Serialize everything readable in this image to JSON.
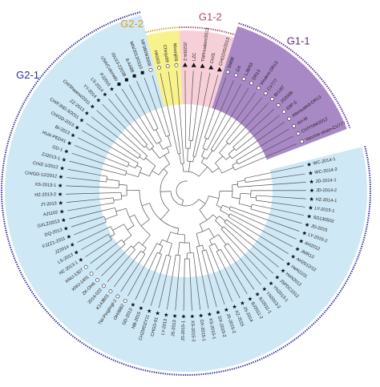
{
  "groups": [
    {
      "id": "g2-1",
      "label": "G2-1",
      "color": "#2b2b9e",
      "fill": "#cfe8f5",
      "label_angle": 216
    },
    {
      "id": "g2-2",
      "label": "G2-2",
      "color": "#d7a21c",
      "fill": "#f7f28a",
      "label_angle": -108
    },
    {
      "id": "g1-2",
      "label": "G1-2",
      "color": "#b04a60",
      "fill": "#f7cfd8",
      "label_angle": -82
    },
    {
      "id": "g1-1",
      "label": "G1-1",
      "color": "#5c2a8a",
      "fill": "#a988c6",
      "label_angle": -53
    }
  ],
  "taxa": [
    {
      "label": "WC-2014-1",
      "marker": "star",
      "group": "g2-1"
    },
    {
      "label": "WC-2014-2",
      "marker": "star",
      "group": "g2-1"
    },
    {
      "label": "JD-2014-1",
      "marker": "star",
      "group": "g2-1"
    },
    {
      "label": "JD-2014-2",
      "marker": "star",
      "group": "g2-1"
    },
    {
      "label": "HZ-2014-1",
      "marker": "star",
      "group": "g2-1"
    },
    {
      "label": "LY-2015-1",
      "marker": "star",
      "group": "g2-1"
    },
    {
      "label": "SD130502",
      "marker": "star",
      "group": "g2-1"
    },
    {
      "label": "JD-2015",
      "marker": "star",
      "group": "g2-1"
    },
    {
      "label": "LY-2015-2",
      "marker": "star",
      "group": "g2-1"
    },
    {
      "label": "AH2012",
      "marker": "star",
      "group": "g2-1"
    },
    {
      "label": "JMR13",
      "marker": "star",
      "group": "g2-1"
    },
    {
      "label": "AH2012/12",
      "marker": "star",
      "group": "g2-1"
    },
    {
      "label": "HeN1101",
      "marker": "star",
      "group": "g2-1"
    },
    {
      "label": "HeN2012",
      "marker": "star",
      "group": "g2-1"
    },
    {
      "label": "JSPDC1012",
      "marker": "star",
      "group": "g2-1"
    },
    {
      "label": "YN2013-1",
      "marker": "star",
      "group": "g2-1"
    },
    {
      "label": "YN2013-2",
      "marker": "star",
      "group": "g2-1"
    },
    {
      "label": "BJ2011-1",
      "marker": "star",
      "group": "g2-1"
    },
    {
      "label": "BJ2011-2",
      "marker": "star",
      "group": "g2-1"
    },
    {
      "label": "JS-2014",
      "marker": "star",
      "group": "g2-1"
    },
    {
      "label": "XZ-2015",
      "marker": "star",
      "group": "g2-1"
    },
    {
      "label": "JS-2015-2",
      "marker": "star",
      "group": "g2-1"
    },
    {
      "label": "DX-2015-2",
      "marker": "star",
      "group": "g2-1"
    },
    {
      "label": "XS-2015-1",
      "marker": "star",
      "group": "g2-1"
    },
    {
      "label": "DX-2015-1",
      "marker": "star",
      "group": "g2-1"
    },
    {
      "label": "XS-2015-2",
      "marker": "star",
      "group": "g2-1"
    },
    {
      "label": "JS-2015-1",
      "marker": "star",
      "group": "g2-1"
    },
    {
      "label": "JS-2013",
      "marker": "star",
      "group": "g2-1"
    },
    {
      "label": "LY-2013",
      "marker": "star",
      "group": "g2-1"
    },
    {
      "label": "CHGD-01",
      "marker": "star",
      "group": "g2-1"
    },
    {
      "label": "CHZMDZY11",
      "marker": "star",
      "group": "g2-1"
    },
    {
      "label": "NB-2015",
      "marker": "star",
      "group": "g2-1"
    },
    {
      "label": "GD-2013",
      "marker": "star",
      "group": "g2-1"
    },
    {
      "label": "OH/iBB2",
      "marker": "circle",
      "group": "g2-1"
    },
    {
      "label": "TW-PinglingI-2",
      "marker": "circle",
      "group": "g2-1"
    },
    {
      "label": "K14JB01",
      "marker": "circle",
      "group": "g2-1"
    },
    {
      "label": "2014-022",
      "marker": "circle",
      "group": "g2-1"
    },
    {
      "label": "ZK-OH6",
      "marker": "circle",
      "group": "g2-1"
    },
    {
      "label": "KNU-1401",
      "marker": "circle",
      "group": "g2-1"
    },
    {
      "label": "KNU-1307",
      "marker": "circle",
      "group": "g2-1"
    },
    {
      "label": "HZ-2013-1",
      "marker": "star",
      "group": "g2-1"
    },
    {
      "label": "LS-2013",
      "marker": "star",
      "group": "g2-1"
    },
    {
      "label": "JZ2014",
      "marker": "star",
      "group": "g2-1"
    },
    {
      "label": "FJZZ1-2011",
      "marker": "star",
      "group": "g2-1"
    },
    {
      "label": "DQ-2013",
      "marker": "star",
      "group": "g2-1"
    },
    {
      "label": "GXLZ/2013",
      "marker": "star",
      "group": "g2-1"
    },
    {
      "label": "AJ1102",
      "marker": "star",
      "group": "g2-1"
    },
    {
      "label": "JT-2013",
      "marker": "star",
      "group": "g2-1"
    },
    {
      "label": "HZ-2013-2",
      "marker": "star",
      "group": "g2-1"
    },
    {
      "label": "XS-2013-1",
      "marker": "star",
      "group": "g2-1"
    },
    {
      "label": "CH/GD-12/2012",
      "marker": "star",
      "group": "g2-1"
    },
    {
      "label": "CH/Z-1/2012",
      "marker": "star",
      "group": "g2-1"
    },
    {
      "label": "ZJ2013-1",
      "marker": "star",
      "group": "g2-1"
    },
    {
      "label": "GD-1",
      "marker": "star",
      "group": "g2-1"
    },
    {
      "label": "HUA-PED41",
      "marker": "star",
      "group": "g2-1"
    },
    {
      "label": "BI-2013",
      "marker": "star",
      "group": "g2-1"
    },
    {
      "label": "CH/GD-2013",
      "marker": "star",
      "group": "g2-1"
    },
    {
      "label": "CH/FJND-3/2011",
      "marker": "star",
      "group": "g2-1"
    },
    {
      "label": "ZZ-2013",
      "marker": "star",
      "group": "g2-1"
    },
    {
      "label": "CH/Shaanxi/2011",
      "marker": "star",
      "group": "g2-1"
    },
    {
      "label": "YY-2014",
      "marker": "star",
      "group": "g2-1"
    },
    {
      "label": "LS-2014",
      "marker": "star",
      "group": "g2-1"
    },
    {
      "label": "PJ2015",
      "marker": "star",
      "group": "g2-1"
    },
    {
      "label": "USA/Colorado",
      "marker": "square",
      "group": "g2-1"
    },
    {
      "label": "ISU13-22038",
      "marker": "square",
      "group": "g2-1"
    },
    {
      "label": "8-AA88",
      "marker": "square",
      "group": "g2-1"
    },
    {
      "label": "MN/2013/0110",
      "marker": "square",
      "group": "g2-1"
    },
    {
      "label": "MF3809/2008",
      "marker": "circle",
      "group": "g2-1"
    },
    {
      "label": "HK003",
      "marker": "circle",
      "group": "g2-2"
    },
    {
      "label": "Chinju99",
      "marker": "circle",
      "group": "g2-2"
    },
    {
      "label": "Moonji09",
      "marker": "circle",
      "group": "g2-2"
    },
    {
      "label": "JS2004-2",
      "marker": "triangle",
      "group": "g1-2"
    },
    {
      "label": "LZC",
      "marker": "triangle",
      "group": "g1-2"
    },
    {
      "label": "TW/Hualien/2013",
      "marker": "triangle",
      "group": "g1-2"
    },
    {
      "label": "CH/S",
      "marker": "triangle",
      "group": "g1-2"
    },
    {
      "label": "CHGD/G/2013",
      "marker": "triangle",
      "group": "g1-2"
    },
    {
      "label": "SM98",
      "marker": "circle",
      "group": "g1-1"
    },
    {
      "label": "DX",
      "marker": "circle",
      "group": "g1-1"
    },
    {
      "label": "LJB/03",
      "marker": "circle",
      "group": "g1-1"
    },
    {
      "label": "DR13",
      "marker": "circle",
      "group": "g1-1"
    },
    {
      "label": "Virulent-DR13",
      "marker": "circle",
      "group": "g1-1"
    },
    {
      "label": "CV777",
      "marker": "circle",
      "group": "g1-1"
    },
    {
      "label": "Br1/87",
      "marker": "circle",
      "group": "g1-1"
    },
    {
      "label": "JS2008",
      "marker": "circle",
      "group": "g1-1"
    },
    {
      "label": "83P-5",
      "marker": "circle",
      "group": "g1-1"
    },
    {
      "label": "Attenuated-DR13",
      "marker": "circle",
      "group": "g1-1"
    },
    {
      "label": "AH-M",
      "marker": "circle",
      "group": "g1-1"
    },
    {
      "label": "CH/YNM/2012",
      "marker": "circle",
      "group": "g1-1"
    },
    {
      "label": "Vaccine-strain-CV777",
      "marker": "circle",
      "group": "g1-1"
    }
  ]
}
